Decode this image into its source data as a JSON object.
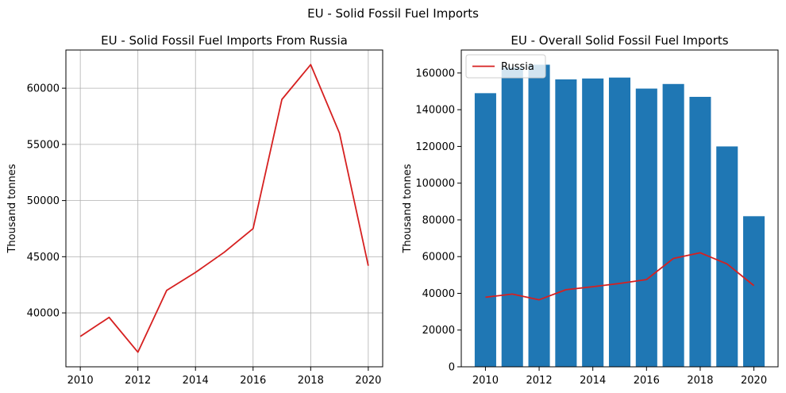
{
  "figure": {
    "suptitle": "EU - Solid Fossil Fuel Imports"
  },
  "chart_data": [
    {
      "type": "line",
      "title": "EU - Solid Fossil Fuel Imports From Russia",
      "xlabel": "",
      "ylabel": "Thousand tonnes",
      "grid": true,
      "x": [
        2010,
        2011,
        2012,
        2013,
        2014,
        2015,
        2016,
        2017,
        2018,
        2019,
        2020
      ],
      "series": [
        {
          "values": [
            37900,
            39600,
            36500,
            42000,
            43600,
            45400,
            47500,
            59000,
            62100,
            56000,
            44200
          ],
          "color": "#d62020"
        }
      ],
      "xticks": [
        2010,
        2012,
        2014,
        2016,
        2018,
        2020
      ],
      "yticks": [
        40000,
        45000,
        50000,
        55000,
        60000
      ],
      "xlim": [
        2009.5,
        2020.5
      ],
      "ylim": [
        35200,
        63400
      ]
    },
    {
      "type": "bar",
      "title": "EU - Overall Solid Fossil Fuel Imports",
      "xlabel": "",
      "ylabel": "Thousand tonnes",
      "grid": false,
      "legend": "upper-left",
      "x": [
        2010,
        2011,
        2012,
        2013,
        2014,
        2015,
        2016,
        2017,
        2018,
        2019,
        2020
      ],
      "bars": {
        "values": [
          149000,
          163000,
          164500,
          156500,
          157000,
          157500,
          151500,
          154000,
          147000,
          120000,
          82000
        ],
        "color": "#1f77b4"
      },
      "series": [
        {
          "name": "Russia",
          "values": [
            37900,
            39600,
            36500,
            42000,
            43600,
            45400,
            47500,
            59000,
            62100,
            56000,
            44200
          ],
          "color": "#d62020"
        }
      ],
      "xticks": [
        2010,
        2012,
        2014,
        2016,
        2018,
        2020
      ],
      "yticks": [
        0,
        20000,
        40000,
        60000,
        80000,
        100000,
        120000,
        140000,
        160000
      ],
      "xlim": [
        2009.1,
        2020.9
      ],
      "ylim": [
        0,
        172500
      ]
    }
  ]
}
